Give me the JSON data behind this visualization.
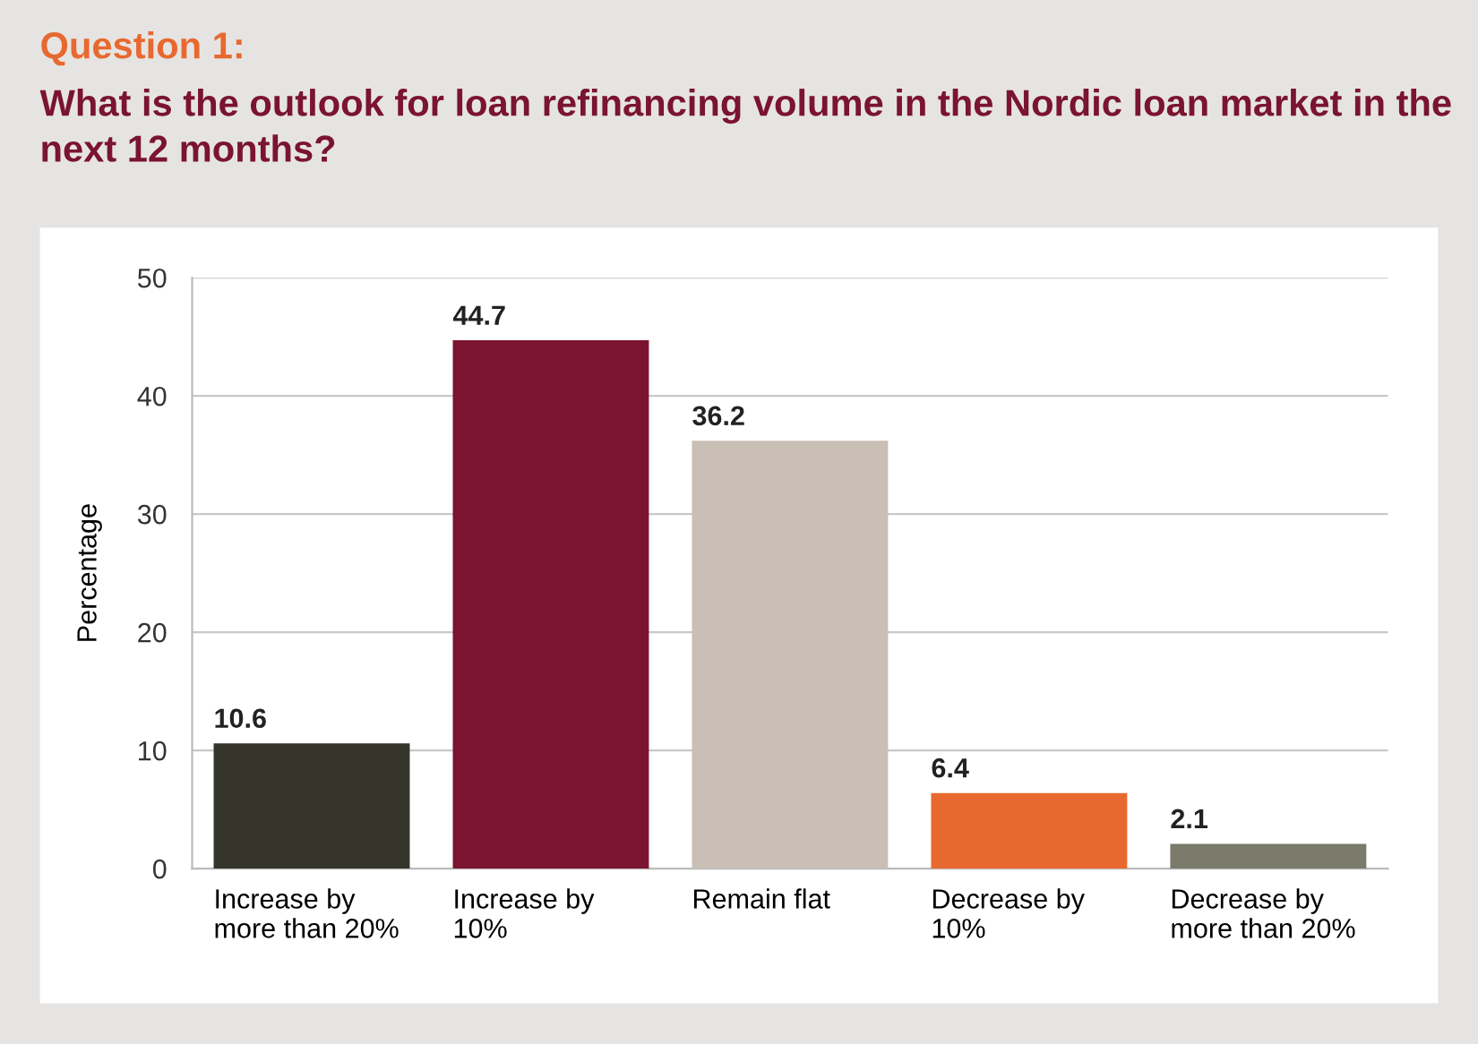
{
  "chart_data": {
    "type": "bar",
    "title": "Question 1:",
    "subtitle": "What is the outlook for loan refinancing volume in the Nordic loan market in the next 12 months?",
    "ylabel": "Percentage",
    "categories": [
      "Increase by\nmore than 20%",
      "Increase by\n10%",
      "Remain flat",
      "Decrease by\n10%",
      "Decrease by\nmore than 20%"
    ],
    "values": [
      10.6,
      44.7,
      36.2,
      6.4,
      2.1
    ],
    "colors": [
      "#35352b",
      "#7a1430",
      "#c9bfb4",
      "#e8692f",
      "#7a7b6a"
    ],
    "ylim": [
      0,
      50
    ],
    "yticks": [
      0,
      10,
      20,
      30,
      40,
      50
    ],
    "grid": "y",
    "data_labels": true
  }
}
